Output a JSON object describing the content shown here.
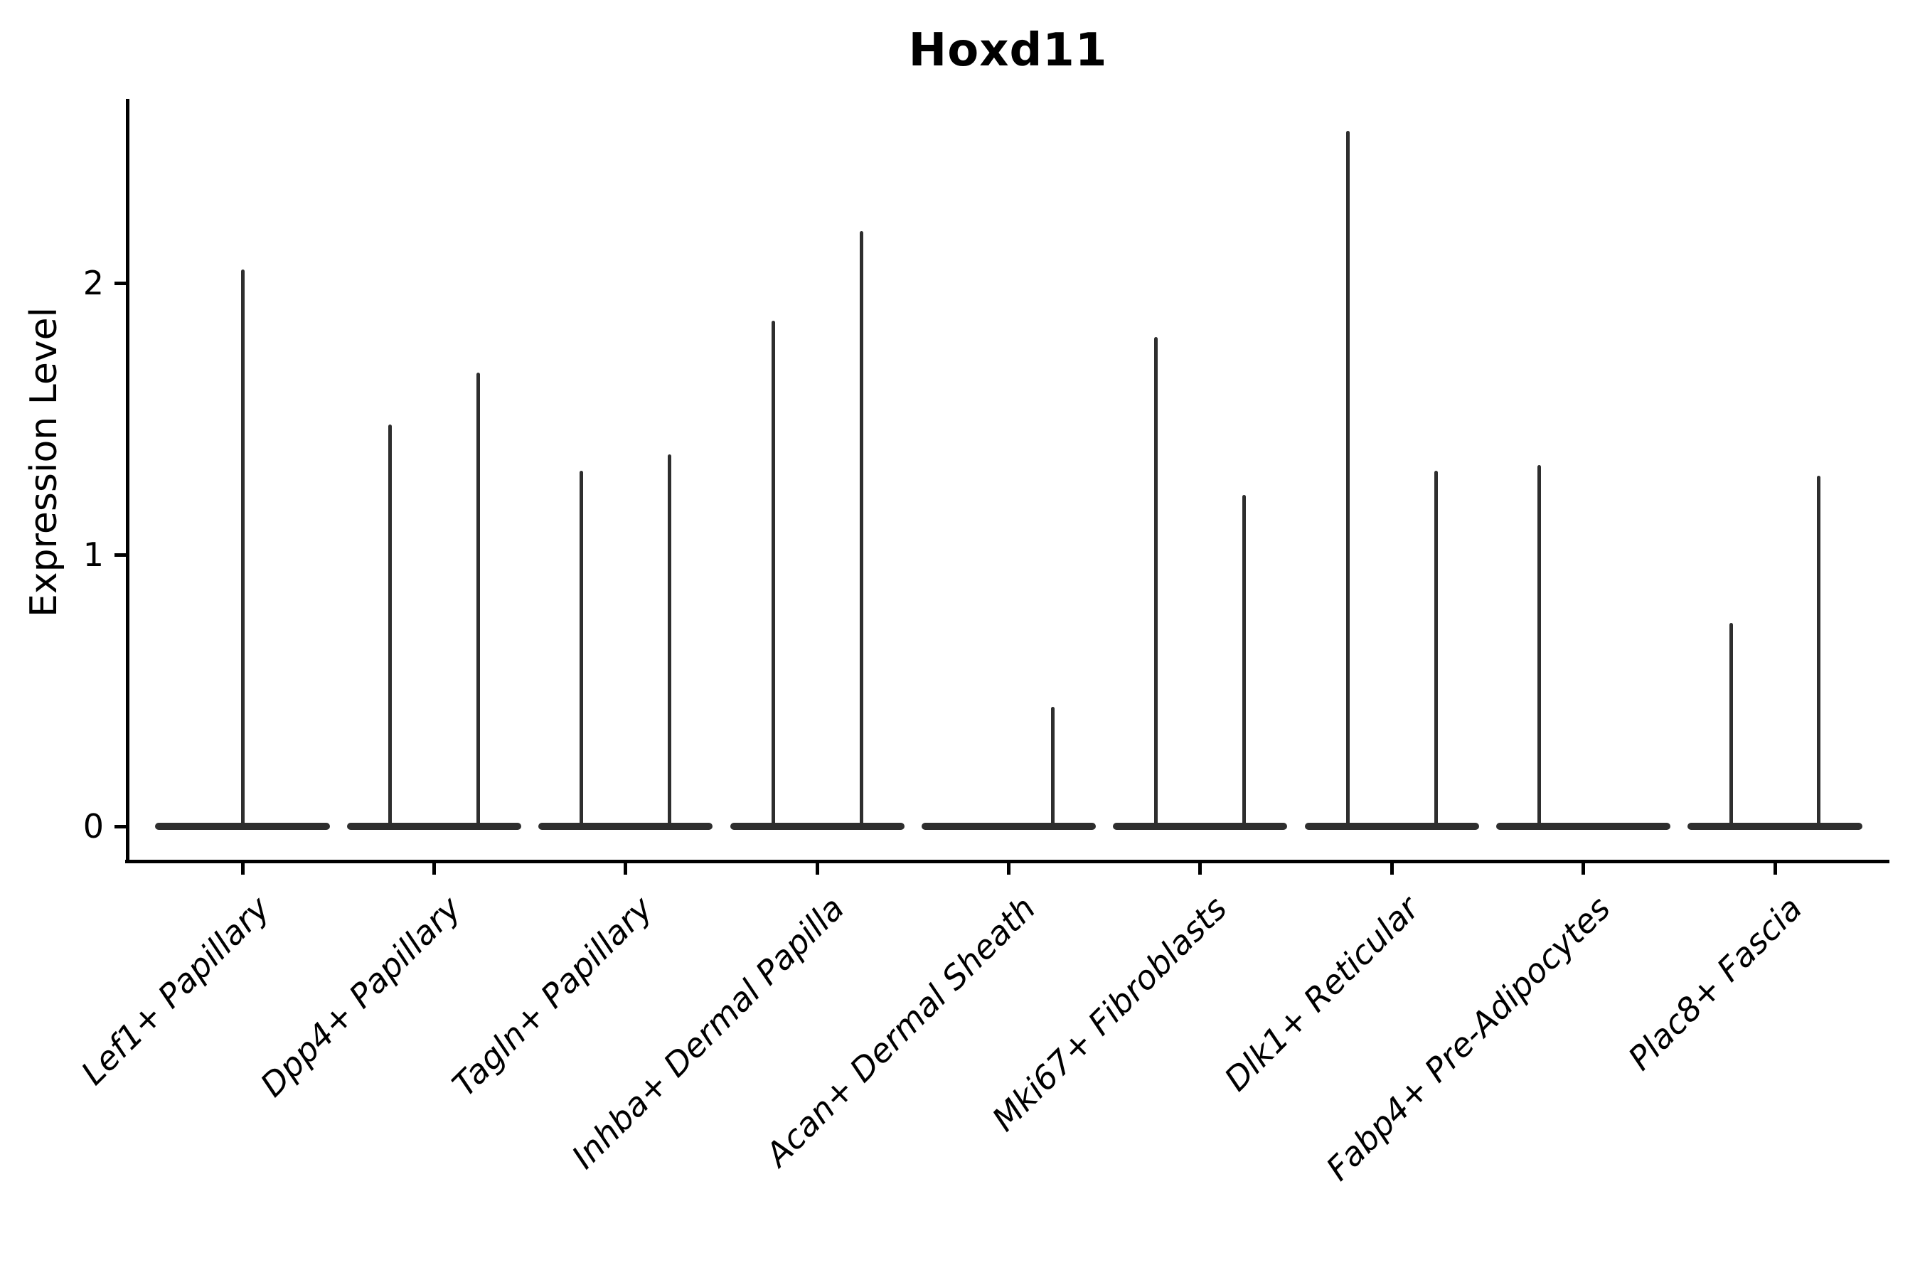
{
  "title": "Hoxd11",
  "y_axis_label": "Expression Level",
  "colors": {
    "violin_line": "#2e2e2e",
    "axis": "#000000",
    "text": "#000000",
    "background": "#ffffff"
  },
  "chart_data": {
    "type": "violin",
    "title": "Hoxd11",
    "xlabel": "",
    "ylabel": "Expression Level",
    "ylim": [
      -0.13,
      2.68
    ],
    "yticks": [
      0,
      1,
      2
    ],
    "grid": false,
    "legend": "none",
    "x_tick_label_rotation_deg": 45,
    "x_tick_label_style": "italic",
    "baseline_halfwidth_units": 0.455,
    "categories": [
      "Lef1+ Papillary",
      "Dpp4+ Papillary",
      "Tagln+ Papillary",
      "Inhba+ Dermal Papilla",
      "Acan+ Dermal Sheath",
      "Mki67+ Fibroblasts",
      "Dlk1+ Reticular",
      "Fabp4+ Pre-Adipocytes",
      "Plac8+ Fascia"
    ],
    "violins": [
      {
        "category": "Lef1+ Papillary",
        "spikes": [
          {
            "offset_units": 0,
            "max_expression": 2.05
          }
        ]
      },
      {
        "category": "Dpp4+ Papillary",
        "spikes": [
          {
            "offset_units": -0.23,
            "max_expression": 1.48
          },
          {
            "offset_units": 0.23,
            "max_expression": 1.67
          }
        ]
      },
      {
        "category": "Tagln+ Papillary",
        "spikes": [
          {
            "offset_units": -0.23,
            "max_expression": 1.31
          },
          {
            "offset_units": 0.23,
            "max_expression": 1.37
          }
        ]
      },
      {
        "category": "Inhba+ Dermal Papilla",
        "spikes": [
          {
            "offset_units": -0.23,
            "max_expression": 1.86
          },
          {
            "offset_units": 0.23,
            "max_expression": 2.19
          }
        ]
      },
      {
        "category": "Acan+ Dermal Sheath",
        "spikes": [
          {
            "offset_units": 0.23,
            "max_expression": 0.44
          }
        ]
      },
      {
        "category": "Mki67+ Fibroblasts",
        "spikes": [
          {
            "offset_units": -0.23,
            "max_expression": 1.8
          },
          {
            "offset_units": 0.23,
            "max_expression": 1.22
          }
        ]
      },
      {
        "category": "Dlk1+ Reticular",
        "spikes": [
          {
            "offset_units": -0.23,
            "max_expression": 2.56
          },
          {
            "offset_units": 0.23,
            "max_expression": 1.31
          }
        ]
      },
      {
        "category": "Fabp4+ Pre-Adipocytes",
        "spikes": [
          {
            "offset_units": -0.23,
            "max_expression": 1.33
          }
        ]
      },
      {
        "category": "Plac8+ Fascia",
        "spikes": [
          {
            "offset_units": -0.23,
            "max_expression": 0.75
          },
          {
            "offset_units": 0.23,
            "max_expression": 1.29
          }
        ]
      }
    ]
  }
}
